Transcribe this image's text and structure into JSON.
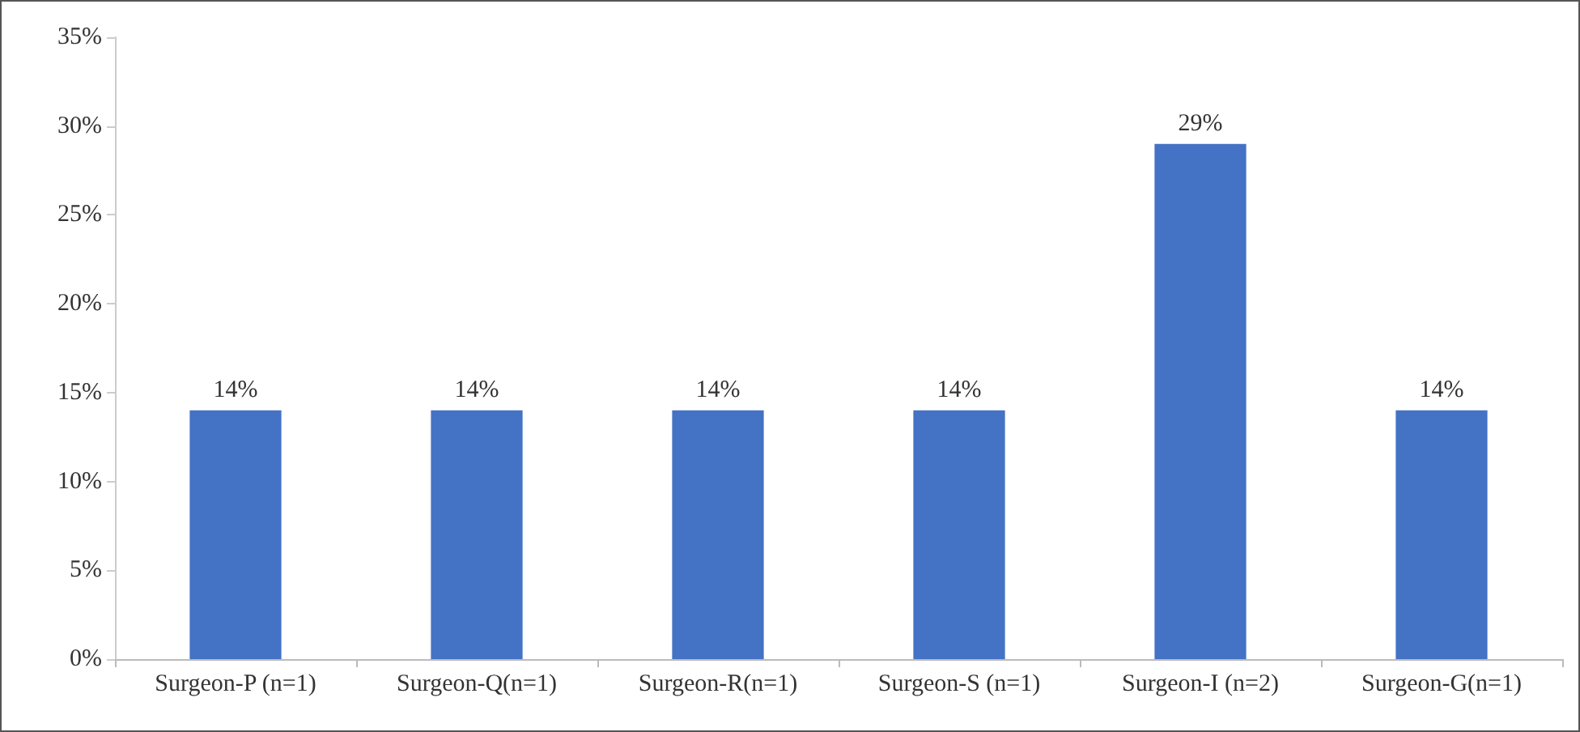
{
  "chart_data": {
    "type": "bar",
    "categories": [
      "Surgeon-P (n=1)",
      "Surgeon-Q(n=1)",
      "Surgeon-R(n=1)",
      "Surgeon-S (n=1)",
      "Surgeon-I (n=2)",
      "Surgeon-G(n=1)"
    ],
    "values": [
      14,
      14,
      14,
      14,
      29,
      14
    ],
    "value_labels": [
      "14%",
      "14%",
      "14%",
      "14%",
      "29%",
      "14%"
    ],
    "color": "#4472c4",
    "ylim": [
      0,
      35
    ],
    "yticks": [
      {
        "value": 0,
        "label": "0%"
      },
      {
        "value": 5,
        "label": "5%"
      },
      {
        "value": 10,
        "label": "10%"
      },
      {
        "value": 15,
        "label": "15%"
      },
      {
        "value": 20,
        "label": "20%"
      },
      {
        "value": 25,
        "label": "25%"
      },
      {
        "value": 30,
        "label": "30%"
      },
      {
        "value": 35,
        "label": "35%"
      }
    ],
    "grid": false
  }
}
